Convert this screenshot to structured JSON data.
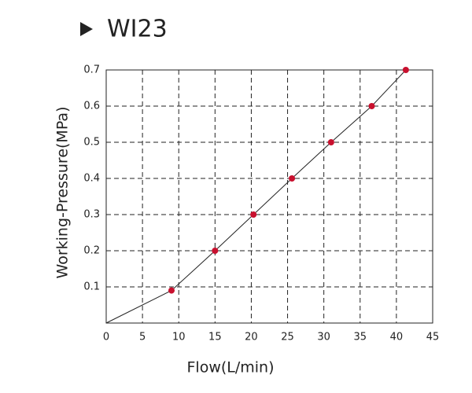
{
  "chart_data": {
    "type": "line",
    "title": "WI23",
    "x_label": "Flow(L/min)",
    "y_label": "Working-Pressure(MPa)",
    "x": [
      0,
      9,
      15,
      20.3,
      25.6,
      31,
      36.6,
      41.3
    ],
    "series": [
      {
        "color": "#c8102e",
        "values": [
          0,
          0.09,
          0.2,
          0.3,
          0.4,
          0.5,
          0.6,
          0.7
        ]
      }
    ],
    "xlim": [
      0,
      45
    ],
    "xticks": [
      0,
      5,
      10,
      15,
      20,
      25,
      30,
      35,
      40,
      45
    ],
    "ylim": [
      0,
      0.7
    ],
    "yticks": [
      0.1,
      0.2,
      0.3,
      0.4,
      0.5,
      0.6,
      0.7
    ],
    "grid": true
  }
}
